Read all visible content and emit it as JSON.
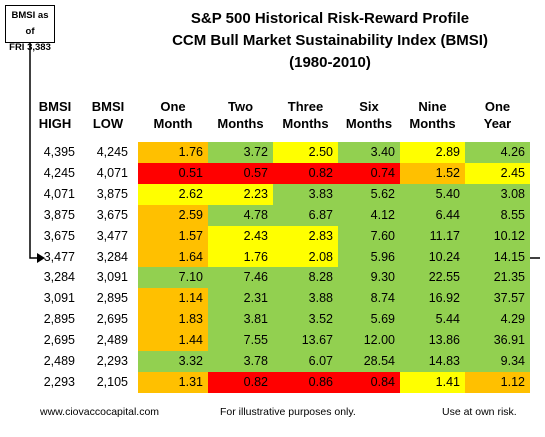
{
  "title_lines": [
    "S&P 500 Historical Risk-Reward Profile",
    "CCM Bull Market Sustainability Index (BMSI)",
    "(1980-2010)"
  ],
  "callout": {
    "lines": [
      "BMSI as of",
      "FRI 3,383"
    ]
  },
  "table": {
    "headers": [
      [
        "BMSI",
        "HIGH"
      ],
      [
        "BMSI",
        "LOW"
      ],
      [
        "One",
        "Month"
      ],
      [
        "Two",
        "Months"
      ],
      [
        "Three",
        "Months"
      ],
      [
        "Six",
        "Months"
      ],
      [
        "Nine",
        "Months"
      ],
      [
        "One",
        "Year"
      ]
    ],
    "rows": [
      [
        "4,395",
        "4,245",
        "1.76",
        "3.72",
        "2.50",
        "3.40",
        "2.89",
        "4.26"
      ],
      [
        "4,245",
        "4,071",
        "0.51",
        "0.57",
        "0.82",
        "0.74",
        "1.52",
        "2.45"
      ],
      [
        "4,071",
        "3,875",
        "2.62",
        "2.23",
        "3.83",
        "5.62",
        "5.40",
        "3.08"
      ],
      [
        "3,875",
        "3,675",
        "2.59",
        "4.78",
        "6.87",
        "4.12",
        "6.44",
        "8.55"
      ],
      [
        "3,675",
        "3,477",
        "1.57",
        "2.43",
        "2.83",
        "7.60",
        "11.17",
        "10.12"
      ],
      [
        "3,477",
        "3,284",
        "1.64",
        "1.76",
        "2.08",
        "5.96",
        "10.24",
        "14.15"
      ],
      [
        "3,284",
        "3,091",
        "7.10",
        "7.46",
        "8.28",
        "9.30",
        "22.55",
        "21.35"
      ],
      [
        "3,091",
        "2,895",
        "1.14",
        "2.31",
        "3.88",
        "8.74",
        "16.92",
        "37.57"
      ],
      [
        "2,895",
        "2,695",
        "1.83",
        "3.81",
        "3.52",
        "5.69",
        "5.44",
        "4.29"
      ],
      [
        "2,695",
        "2,489",
        "1.44",
        "7.55",
        "13.67",
        "12.00",
        "13.86",
        "36.91"
      ],
      [
        "2,489",
        "2,293",
        "3.32",
        "3.78",
        "6.07",
        "28.54",
        "14.83",
        "9.34"
      ],
      [
        "2,293",
        "2,105",
        "1.31",
        "0.82",
        "0.86",
        "0.84",
        "1.41",
        "1.12"
      ]
    ],
    "colors": [
      [
        "#ffc000",
        "#92d050",
        "#ffff00",
        "#92d050",
        "#ffff00",
        "#92d050"
      ],
      [
        "#ff0000",
        "#ff0000",
        "#ff0000",
        "#ff0000",
        "#ffc000",
        "#ffff00"
      ],
      [
        "#ffff00",
        "#ffff00",
        "#92d050",
        "#92d050",
        "#92d050",
        "#92d050"
      ],
      [
        "#ffc000",
        "#92d050",
        "#92d050",
        "#92d050",
        "#92d050",
        "#92d050"
      ],
      [
        "#ffc000",
        "#ffff00",
        "#ffff00",
        "#92d050",
        "#92d050",
        "#92d050"
      ],
      [
        "#ffc000",
        "#ffff00",
        "#ffff00",
        "#92d050",
        "#92d050",
        "#92d050"
      ],
      [
        "#92d050",
        "#92d050",
        "#92d050",
        "#92d050",
        "#92d050",
        "#92d050"
      ],
      [
        "#ffc000",
        "#92d050",
        "#92d050",
        "#92d050",
        "#92d050",
        "#92d050"
      ],
      [
        "#ffc000",
        "#92d050",
        "#92d050",
        "#92d050",
        "#92d050",
        "#92d050"
      ],
      [
        "#ffc000",
        "#92d050",
        "#92d050",
        "#92d050",
        "#92d050",
        "#92d050"
      ],
      [
        "#92d050",
        "#92d050",
        "#92d050",
        "#92d050",
        "#92d050",
        "#92d050"
      ],
      [
        "#ffc000",
        "#ff0000",
        "#ff0000",
        "#ff0000",
        "#ffff00",
        "#ffc000"
      ]
    ]
  },
  "footer": {
    "left": "www.ciovaccocapital.com",
    "center": "For illustrative purposes only.",
    "right": "Use at own risk."
  }
}
